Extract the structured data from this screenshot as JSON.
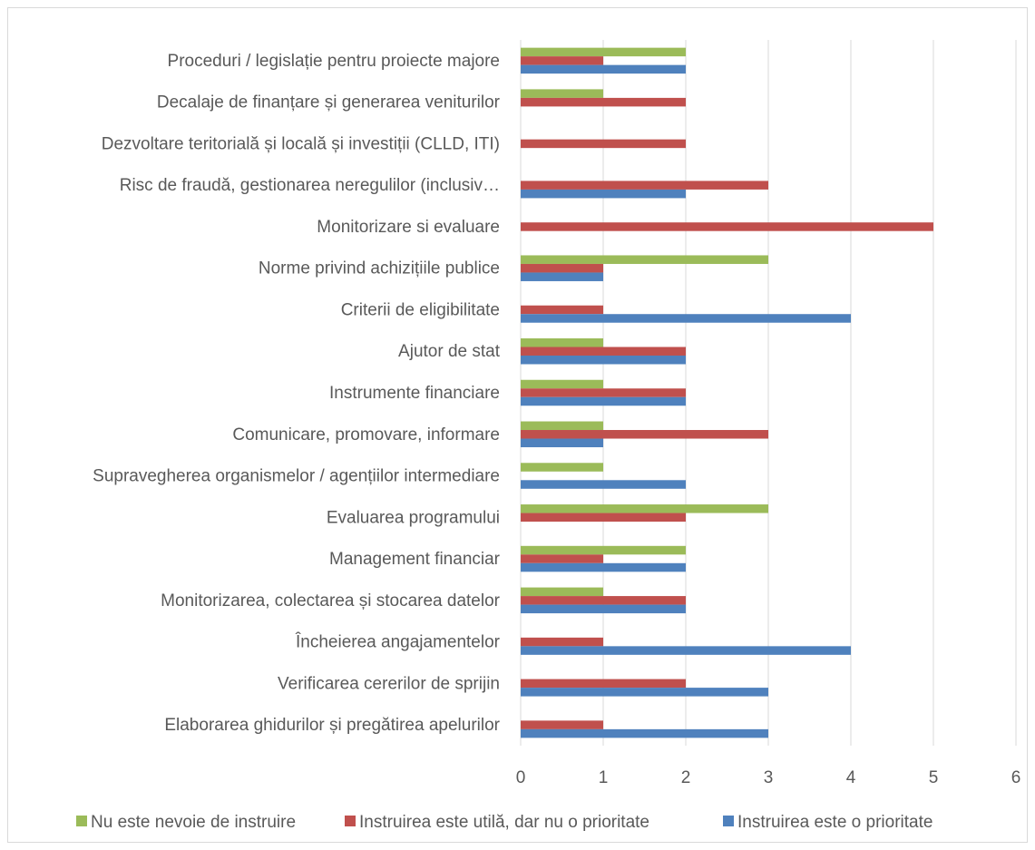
{
  "chart_data": {
    "type": "bar",
    "orientation": "horizontal",
    "categories": [
      "Proceduri / legislație pentru proiecte majore",
      "Decalaje de finanțare și generarea veniturilor",
      "Dezvoltare teritorială și locală și investiții (CLLD, ITI)",
      "Risc de fraudă, gestionarea neregulilor (inclusiv…",
      "Monitorizare si evaluare",
      "Norme privind achizițiile publice",
      "Criterii de eligibilitate",
      "Ajutor de stat",
      "Instrumente financiare",
      "Comunicare, promovare, informare",
      "Supravegherea organismelor / agențiilor intermediare",
      "Evaluarea programului",
      "Management financiar",
      "Monitorizarea, colectarea și stocarea datelor",
      "Încheierea angajamentelor",
      "Verificarea cererilor de sprijin",
      "Elaborarea ghidurilor și pregătirea apelurilor"
    ],
    "series": [
      {
        "name": "Nu este nevoie de instruire",
        "color": "#9bbb59",
        "values": [
          2,
          1,
          0,
          0,
          0,
          3,
          0,
          1,
          1,
          1,
          1,
          3,
          2,
          1,
          0,
          0,
          0
        ]
      },
      {
        "name": "Instruirea este utilă, dar nu o prioritate",
        "color": "#c0504d",
        "values": [
          1,
          2,
          2,
          3,
          5,
          1,
          1,
          2,
          2,
          3,
          0,
          2,
          1,
          2,
          1,
          2,
          1
        ]
      },
      {
        "name": "Instruirea este o prioritate",
        "color": "#4f81bd",
        "values": [
          2,
          0,
          0,
          2,
          0,
          1,
          4,
          2,
          2,
          1,
          2,
          0,
          2,
          2,
          4,
          3,
          3
        ]
      }
    ],
    "x_ticks": [
      "0",
      "1",
      "2",
      "3",
      "4",
      "5",
      "6"
    ],
    "xlim": [
      0,
      6
    ],
    "title": "",
    "xlabel": "",
    "ylabel": "",
    "grid": "vertical",
    "legend_position": "bottom"
  }
}
